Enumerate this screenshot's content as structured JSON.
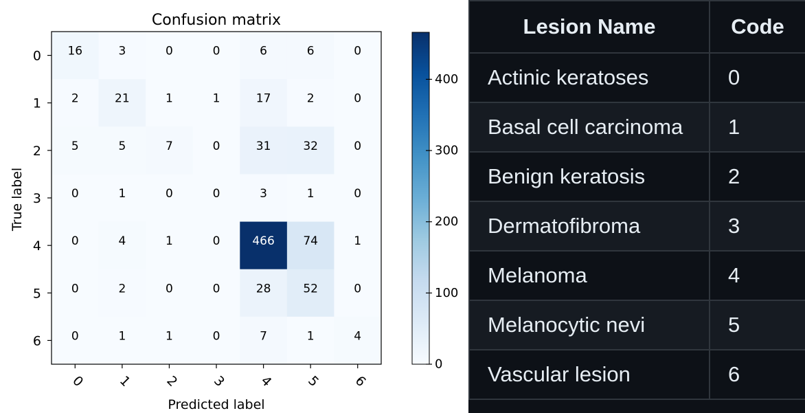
{
  "chart_data": {
    "type": "heatmap",
    "title": "Confusion matrix",
    "xlabel": "Predicted label",
    "ylabel": "True label",
    "x_categories": [
      "0",
      "1",
      "2",
      "3",
      "4",
      "5",
      "6"
    ],
    "y_categories": [
      "0",
      "1",
      "2",
      "3",
      "4",
      "5",
      "6"
    ],
    "values": [
      [
        16,
        3,
        0,
        0,
        6,
        6,
        0
      ],
      [
        2,
        21,
        1,
        1,
        17,
        2,
        0
      ],
      [
        5,
        5,
        7,
        0,
        31,
        32,
        0
      ],
      [
        0,
        1,
        0,
        0,
        3,
        1,
        0
      ],
      [
        0,
        4,
        1,
        0,
        466,
        74,
        1
      ],
      [
        0,
        2,
        0,
        0,
        28,
        52,
        0
      ],
      [
        0,
        1,
        1,
        0,
        7,
        1,
        4
      ]
    ],
    "colormap": "Blues",
    "colorbar": {
      "min": 0,
      "max": 466,
      "ticks": [
        "0",
        "100",
        "200",
        "300",
        "400"
      ]
    },
    "colors": {
      "low": "#f7fbff",
      "high": "#08306b"
    }
  },
  "lesion_table": {
    "headers": [
      "Lesion Name",
      "Code"
    ],
    "rows": [
      {
        "name": "Actinic keratoses",
        "code": "0"
      },
      {
        "name": "Basal cell carcinoma",
        "code": "1"
      },
      {
        "name": "Benign keratosis",
        "code": "2"
      },
      {
        "name": "Dermatofibroma",
        "code": "3"
      },
      {
        "name": "Melanoma",
        "code": "4"
      },
      {
        "name": "Melanocytic nevi",
        "code": "5"
      },
      {
        "name": "Vascular lesion",
        "code": "6"
      }
    ]
  }
}
